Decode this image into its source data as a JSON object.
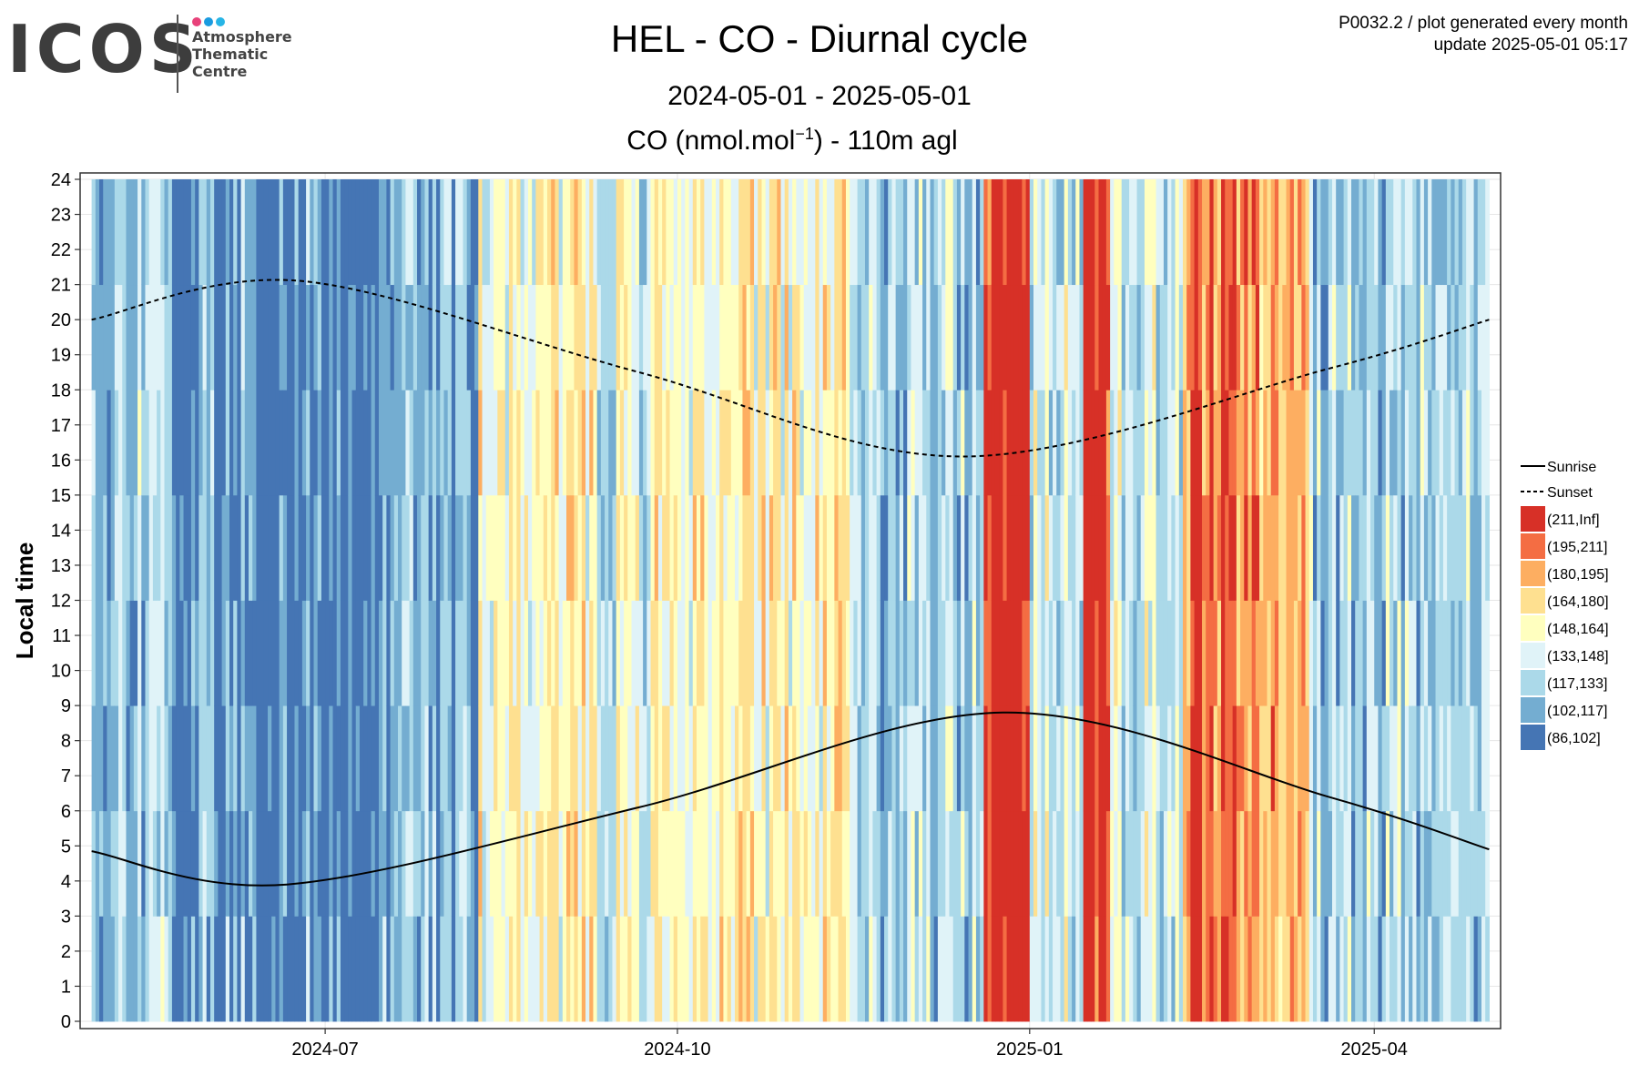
{
  "logo": {
    "wordmark": "ICOS",
    "lines": [
      "Atmosphere",
      "Thematic",
      "Centre"
    ],
    "dot_colors": [
      "#e8427a",
      "#1a9be0",
      "#27b5e6"
    ]
  },
  "header": {
    "title": "HEL - CO - Diurnal cycle",
    "subtitle": "2024-05-01 - 2025-05-01",
    "var_label_prefix": "CO (nmol.mol",
    "var_label_sup": "−1",
    "var_label_suffix": ") - 110m agl",
    "info_line1": "P0032.2 / plot generated every month",
    "info_line2": "update  2025-05-01 05:17"
  },
  "chart_data": {
    "type": "heatmap",
    "title": "HEL - CO - Diurnal cycle",
    "subtitle": "2024-05-01 - 2025-05-01",
    "xlabel": "",
    "ylabel": "Local time",
    "x_range": [
      "2024-05-01",
      "2025-05-01"
    ],
    "y_range": [
      0,
      24
    ],
    "x_ticks": [
      {
        "date": "2024-07-01",
        "label": "2024-07"
      },
      {
        "date": "2024-10-01",
        "label": "2024-10"
      },
      {
        "date": "2025-01-01",
        "label": "2025-01"
      },
      {
        "date": "2025-04-01",
        "label": "2025-04"
      }
    ],
    "y_ticks": [
      0,
      1,
      2,
      3,
      4,
      5,
      6,
      7,
      8,
      9,
      10,
      11,
      12,
      13,
      14,
      15,
      16,
      17,
      18,
      19,
      20,
      21,
      22,
      23,
      24
    ],
    "grid": true,
    "legend_position": "right",
    "classes": [
      {
        "label": "(211,Inf]",
        "color": "#d73027"
      },
      {
        "label": "(195,211]",
        "color": "#f46d43"
      },
      {
        "label": "(180,195]",
        "color": "#fdae61"
      },
      {
        "label": "(164,180]",
        "color": "#fee090"
      },
      {
        "label": "(148,164]",
        "color": "#ffffbf"
      },
      {
        "label": "(133,148]",
        "color": "#e0f3f8"
      },
      {
        "label": "(117,133]",
        "color": "#abd9e9"
      },
      {
        "label": "(102,117]",
        "color": "#74add1"
      },
      {
        "label": "(86,102]",
        "color": "#4575b4"
      }
    ],
    "daily_dominant_class_by_period": [
      {
        "from": "2024-05-01",
        "to": "2024-05-20",
        "class": "(117,133]"
      },
      {
        "from": "2024-05-20",
        "to": "2024-06-10",
        "class": "(102,117]"
      },
      {
        "from": "2024-06-10",
        "to": "2024-06-25",
        "class": "(86,102]"
      },
      {
        "from": "2024-06-25",
        "to": "2024-06-30",
        "class": "(102,117]"
      },
      {
        "from": "2024-06-30",
        "to": "2024-07-15",
        "class": "(86,102]"
      },
      {
        "from": "2024-07-15",
        "to": "2024-08-10",
        "class": "(102,117]"
      },
      {
        "from": "2024-08-10",
        "to": "2024-09-10",
        "class": "(148,164]"
      },
      {
        "from": "2024-09-10",
        "to": "2024-09-25",
        "class": "(133,148]"
      },
      {
        "from": "2024-09-25",
        "to": "2024-11-15",
        "class": "(148,164]"
      },
      {
        "from": "2024-11-15",
        "to": "2024-12-20",
        "class": "(117,133]"
      },
      {
        "from": "2024-12-20",
        "to": "2025-01-01",
        "class": "(211,Inf]"
      },
      {
        "from": "2025-01-01",
        "to": "2025-01-15",
        "class": "(133,148]"
      },
      {
        "from": "2025-01-15",
        "to": "2025-01-22",
        "class": "(211,Inf]"
      },
      {
        "from": "2025-01-22",
        "to": "2025-02-10",
        "class": "(133,148]"
      },
      {
        "from": "2025-02-10",
        "to": "2025-03-01",
        "class": "(195,211]"
      },
      {
        "from": "2025-03-01",
        "to": "2025-03-15",
        "class": "(180,195]"
      },
      {
        "from": "2025-03-15",
        "to": "2025-05-01",
        "class": "(117,133]"
      }
    ],
    "lines": [
      {
        "name": "Sunrise",
        "style": "solid",
        "points": [
          [
            "2024-05-01",
            4.85
          ],
          [
            "2024-06-21",
            3.9
          ],
          [
            "2024-09-21",
            6.1
          ],
          [
            "2024-12-25",
            8.8
          ],
          [
            "2025-03-20",
            6.4
          ],
          [
            "2025-05-01",
            4.9
          ]
        ]
      },
      {
        "name": "Sunset",
        "style": "dashed",
        "points": [
          [
            "2024-05-01",
            20.0
          ],
          [
            "2024-06-25",
            21.1
          ],
          [
            "2024-09-21",
            18.5
          ],
          [
            "2024-12-15",
            16.1
          ],
          [
            "2025-03-20",
            18.6
          ],
          [
            "2025-05-01",
            20.0
          ]
        ]
      }
    ]
  }
}
